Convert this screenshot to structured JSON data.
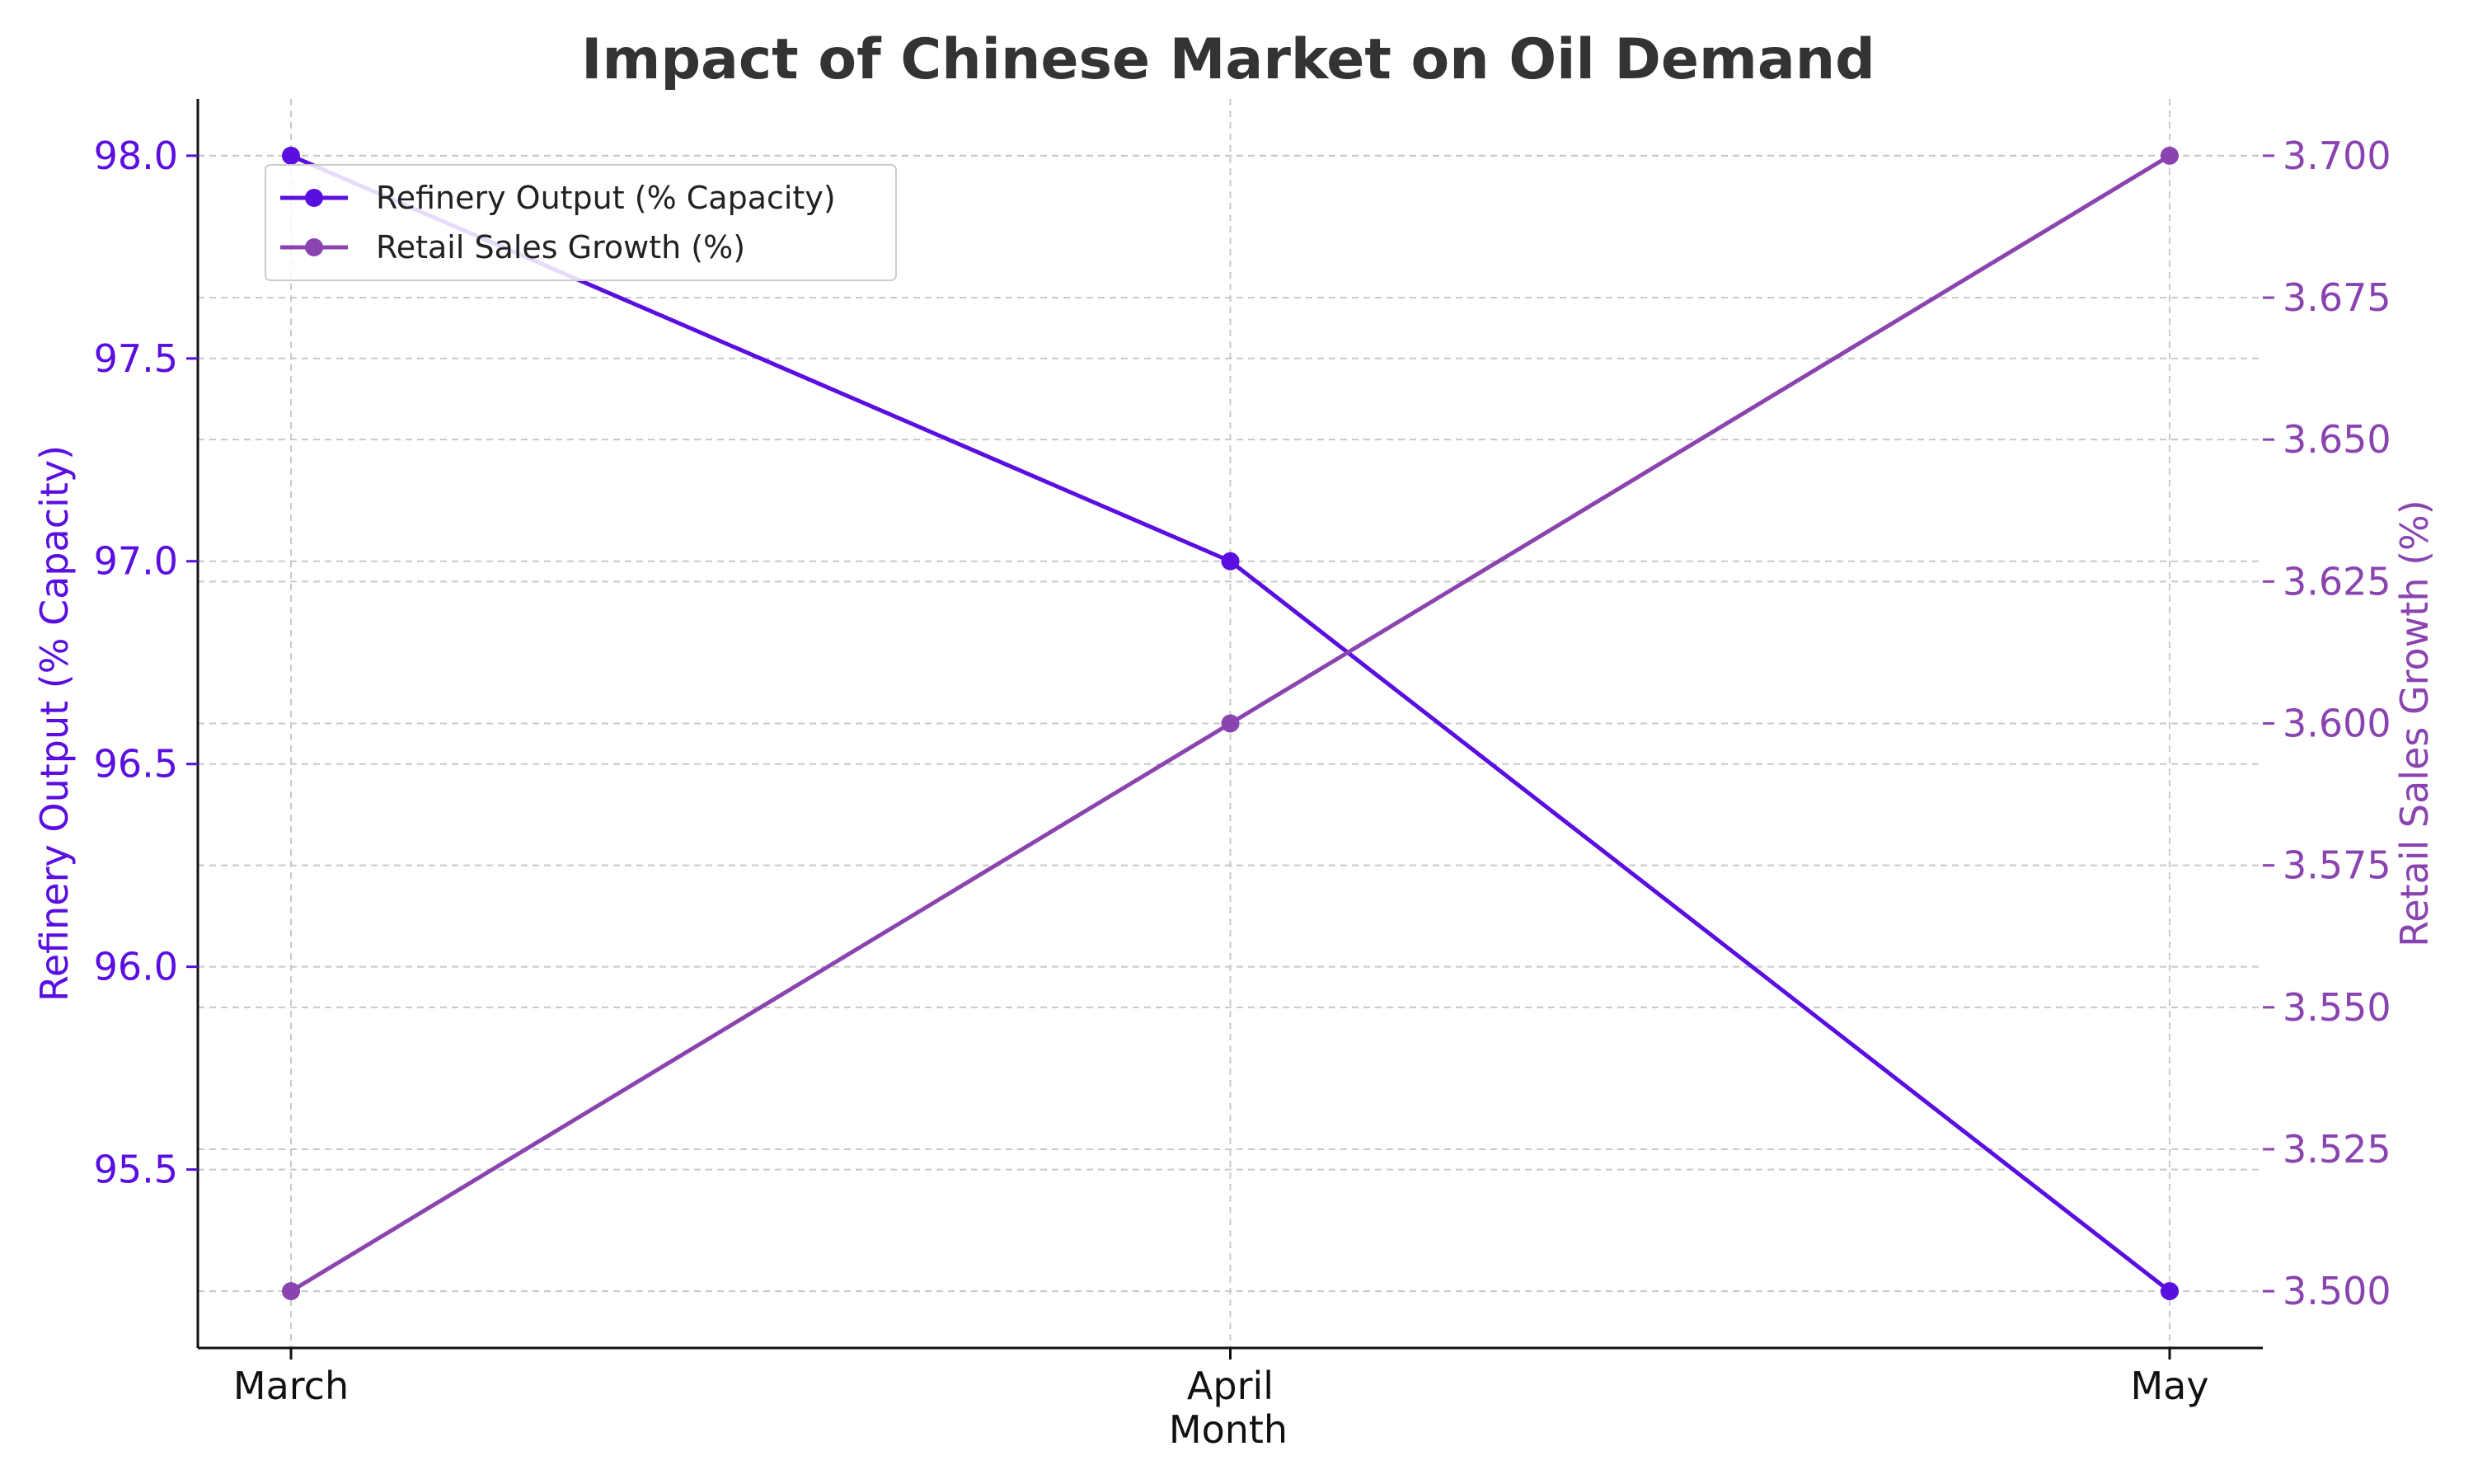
{
  "chart_data": {
    "type": "line",
    "title": "Impact of Chinese Market on Oil Demand",
    "xlabel": "Month",
    "categories": [
      "March",
      "April",
      "May"
    ],
    "series": [
      {
        "name": "Refinery Output (% Capacity)",
        "axis": "left",
        "color": "#5a0ee0",
        "values": [
          98.0,
          97.0,
          95.2
        ]
      },
      {
        "name": "Retail Sales Growth (%)",
        "axis": "right",
        "color": "#8a44b0",
        "values": [
          3.5,
          3.6,
          3.7
        ]
      }
    ],
    "y_left": {
      "label": "Refinery Output (% Capacity)",
      "color": "#5a0ee0",
      "lim": [
        95.06,
        98.14
      ],
      "ticks": [
        "95.5",
        "96.0",
        "96.5",
        "97.0",
        "97.5",
        "98.0"
      ]
    },
    "y_right": {
      "label": "Retail Sales Growth (%)",
      "color": "#8a44b0",
      "lim": [
        3.49,
        3.71
      ],
      "ticks": [
        "3.500",
        "3.525",
        "3.550",
        "3.575",
        "3.600",
        "3.625",
        "3.650",
        "3.675",
        "3.700"
      ]
    },
    "grid": true,
    "legend_position": "top-left"
  }
}
